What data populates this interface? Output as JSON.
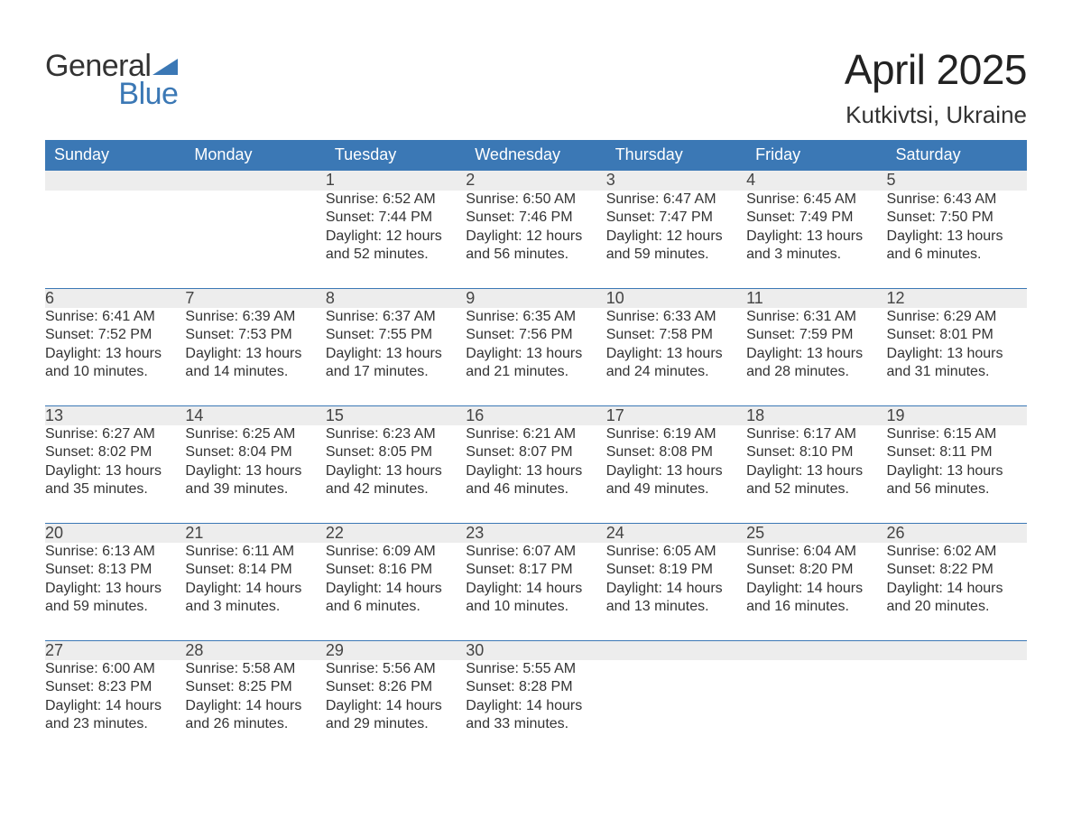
{
  "logo": {
    "word1": "General",
    "word2": "Blue",
    "brand_color": "#3b78b5"
  },
  "title": "April 2025",
  "location": "Kutkivtsi, Ukraine",
  "header_bg": "#3b78b5",
  "header_fg": "#ffffff",
  "daynum_bg": "#ededed",
  "week_sep_color": "#3b78b5",
  "text_color": "#333333",
  "days_of_week": [
    "Sunday",
    "Monday",
    "Tuesday",
    "Wednesday",
    "Thursday",
    "Friday",
    "Saturday"
  ],
  "weeks": [
    {
      "nums": [
        "",
        "",
        "1",
        "2",
        "3",
        "4",
        "5"
      ],
      "cells": [
        "",
        "",
        "Sunrise: 6:52 AM\nSunset: 7:44 PM\nDaylight: 12 hours and 52 minutes.",
        "Sunrise: 6:50 AM\nSunset: 7:46 PM\nDaylight: 12 hours and 56 minutes.",
        "Sunrise: 6:47 AM\nSunset: 7:47 PM\nDaylight: 12 hours and 59 minutes.",
        "Sunrise: 6:45 AM\nSunset: 7:49 PM\nDaylight: 13 hours and 3 minutes.",
        "Sunrise: 6:43 AM\nSunset: 7:50 PM\nDaylight: 13 hours and 6 minutes."
      ]
    },
    {
      "nums": [
        "6",
        "7",
        "8",
        "9",
        "10",
        "11",
        "12"
      ],
      "cells": [
        "Sunrise: 6:41 AM\nSunset: 7:52 PM\nDaylight: 13 hours and 10 minutes.",
        "Sunrise: 6:39 AM\nSunset: 7:53 PM\nDaylight: 13 hours and 14 minutes.",
        "Sunrise: 6:37 AM\nSunset: 7:55 PM\nDaylight: 13 hours and 17 minutes.",
        "Sunrise: 6:35 AM\nSunset: 7:56 PM\nDaylight: 13 hours and 21 minutes.",
        "Sunrise: 6:33 AM\nSunset: 7:58 PM\nDaylight: 13 hours and 24 minutes.",
        "Sunrise: 6:31 AM\nSunset: 7:59 PM\nDaylight: 13 hours and 28 minutes.",
        "Sunrise: 6:29 AM\nSunset: 8:01 PM\nDaylight: 13 hours and 31 minutes."
      ]
    },
    {
      "nums": [
        "13",
        "14",
        "15",
        "16",
        "17",
        "18",
        "19"
      ],
      "cells": [
        "Sunrise: 6:27 AM\nSunset: 8:02 PM\nDaylight: 13 hours and 35 minutes.",
        "Sunrise: 6:25 AM\nSunset: 8:04 PM\nDaylight: 13 hours and 39 minutes.",
        "Sunrise: 6:23 AM\nSunset: 8:05 PM\nDaylight: 13 hours and 42 minutes.",
        "Sunrise: 6:21 AM\nSunset: 8:07 PM\nDaylight: 13 hours and 46 minutes.",
        "Sunrise: 6:19 AM\nSunset: 8:08 PM\nDaylight: 13 hours and 49 minutes.",
        "Sunrise: 6:17 AM\nSunset: 8:10 PM\nDaylight: 13 hours and 52 minutes.",
        "Sunrise: 6:15 AM\nSunset: 8:11 PM\nDaylight: 13 hours and 56 minutes."
      ]
    },
    {
      "nums": [
        "20",
        "21",
        "22",
        "23",
        "24",
        "25",
        "26"
      ],
      "cells": [
        "Sunrise: 6:13 AM\nSunset: 8:13 PM\nDaylight: 13 hours and 59 minutes.",
        "Sunrise: 6:11 AM\nSunset: 8:14 PM\nDaylight: 14 hours and 3 minutes.",
        "Sunrise: 6:09 AM\nSunset: 8:16 PM\nDaylight: 14 hours and 6 minutes.",
        "Sunrise: 6:07 AM\nSunset: 8:17 PM\nDaylight: 14 hours and 10 minutes.",
        "Sunrise: 6:05 AM\nSunset: 8:19 PM\nDaylight: 14 hours and 13 minutes.",
        "Sunrise: 6:04 AM\nSunset: 8:20 PM\nDaylight: 14 hours and 16 minutes.",
        "Sunrise: 6:02 AM\nSunset: 8:22 PM\nDaylight: 14 hours and 20 minutes."
      ]
    },
    {
      "nums": [
        "27",
        "28",
        "29",
        "30",
        "",
        "",
        ""
      ],
      "cells": [
        "Sunrise: 6:00 AM\nSunset: 8:23 PM\nDaylight: 14 hours and 23 minutes.",
        "Sunrise: 5:58 AM\nSunset: 8:25 PM\nDaylight: 14 hours and 26 minutes.",
        "Sunrise: 5:56 AM\nSunset: 8:26 PM\nDaylight: 14 hours and 29 minutes.",
        "Sunrise: 5:55 AM\nSunset: 8:28 PM\nDaylight: 14 hours and 33 minutes.",
        "",
        "",
        ""
      ]
    }
  ]
}
